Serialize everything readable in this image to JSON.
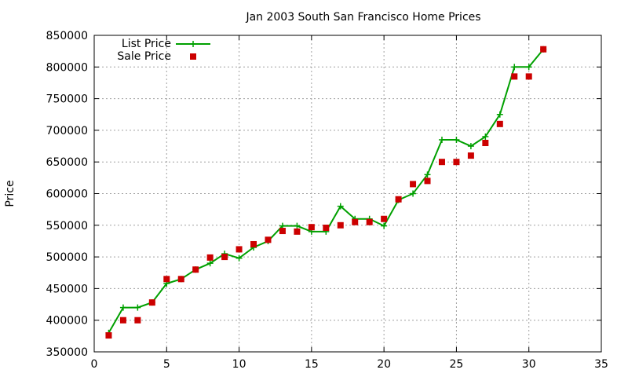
{
  "chart_data": {
    "type": "line",
    "title": "Jan 2003 South San Francisco Home Prices",
    "xlabel": "",
    "ylabel": "Price",
    "xlim": [
      0,
      35
    ],
    "ylim": [
      350000,
      850000
    ],
    "xticks": [
      0,
      5,
      10,
      15,
      20,
      25,
      30,
      35
    ],
    "yticks": [
      350000,
      400000,
      450000,
      500000,
      550000,
      600000,
      650000,
      700000,
      750000,
      800000,
      850000
    ],
    "grid": true,
    "legend_position": "top-left",
    "series": [
      {
        "name": "List Price",
        "style": "line-plus",
        "color": "#00a000",
        "x": [
          1,
          2,
          3,
          4,
          5,
          6,
          7,
          8,
          9,
          10,
          11,
          12,
          13,
          14,
          15,
          16,
          17,
          18,
          19,
          20,
          21,
          22,
          23,
          24,
          25,
          26,
          27,
          28,
          29,
          30,
          31
        ],
        "y": [
          380000,
          420000,
          420000,
          428000,
          458000,
          465000,
          480000,
          490000,
          505000,
          498000,
          515000,
          525000,
          549000,
          549000,
          540000,
          540000,
          580000,
          560000,
          560000,
          549000,
          590000,
          600000,
          630000,
          685000,
          685000,
          675000,
          690000,
          725000,
          800000,
          800000,
          828000
        ]
      },
      {
        "name": "Sale Price",
        "style": "square",
        "color": "#cc0000",
        "x": [
          1,
          2,
          3,
          4,
          5,
          6,
          7,
          8,
          9,
          10,
          11,
          12,
          13,
          14,
          15,
          16,
          17,
          18,
          19,
          20,
          21,
          22,
          23,
          24,
          25,
          26,
          27,
          28,
          29,
          30,
          31
        ],
        "y": [
          376000,
          400000,
          400000,
          428000,
          465000,
          465000,
          480000,
          499000,
          500000,
          512000,
          520000,
          527000,
          541000,
          540000,
          547000,
          546000,
          550000,
          555000,
          555000,
          560000,
          591000,
          615000,
          620000,
          650000,
          650000,
          660000,
          680000,
          710000,
          785000,
          785000,
          828000
        ]
      }
    ]
  }
}
